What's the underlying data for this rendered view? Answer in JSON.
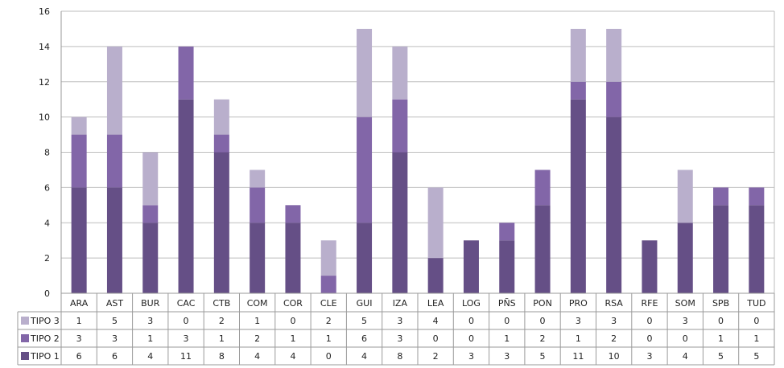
{
  "chart_data": {
    "type": "bar",
    "stacked": true,
    "title": "",
    "xlabel": "",
    "ylabel": "",
    "ylim": [
      0,
      16
    ],
    "yticks": [
      0,
      2,
      4,
      6,
      8,
      10,
      12,
      14,
      16
    ],
    "grid": true,
    "legend_placement": "data-table-left",
    "categories": [
      "ARA",
      "AST",
      "BUR",
      "CAC",
      "CTB",
      "COM",
      "COR",
      "CLE",
      "GUI",
      "IZA",
      "LEA",
      "LOG",
      "PÑS",
      "PON",
      "PRO",
      "RSA",
      "RFE",
      "SOM",
      "SPB",
      "TUD"
    ],
    "series": [
      {
        "name": "TIPO 1",
        "color": "#654f86",
        "values": [
          6,
          6,
          4,
          11,
          8,
          4,
          4,
          0,
          4,
          8,
          2,
          3,
          3,
          5,
          11,
          10,
          3,
          4,
          5,
          5
        ]
      },
      {
        "name": "TIPO 2",
        "color": "#8266a8",
        "values": [
          3,
          3,
          1,
          3,
          1,
          2,
          1,
          1,
          6,
          3,
          0,
          0,
          1,
          2,
          1,
          2,
          0,
          0,
          1,
          1
        ]
      },
      {
        "name": "TIPO 3",
        "color": "#b9afcc",
        "values": [
          1,
          5,
          3,
          0,
          2,
          1,
          0,
          2,
          5,
          3,
          4,
          0,
          0,
          0,
          3,
          3,
          0,
          3,
          0,
          0
        ]
      }
    ],
    "table_row_order": [
      "TIPO 3",
      "TIPO 2",
      "TIPO 1"
    ]
  }
}
